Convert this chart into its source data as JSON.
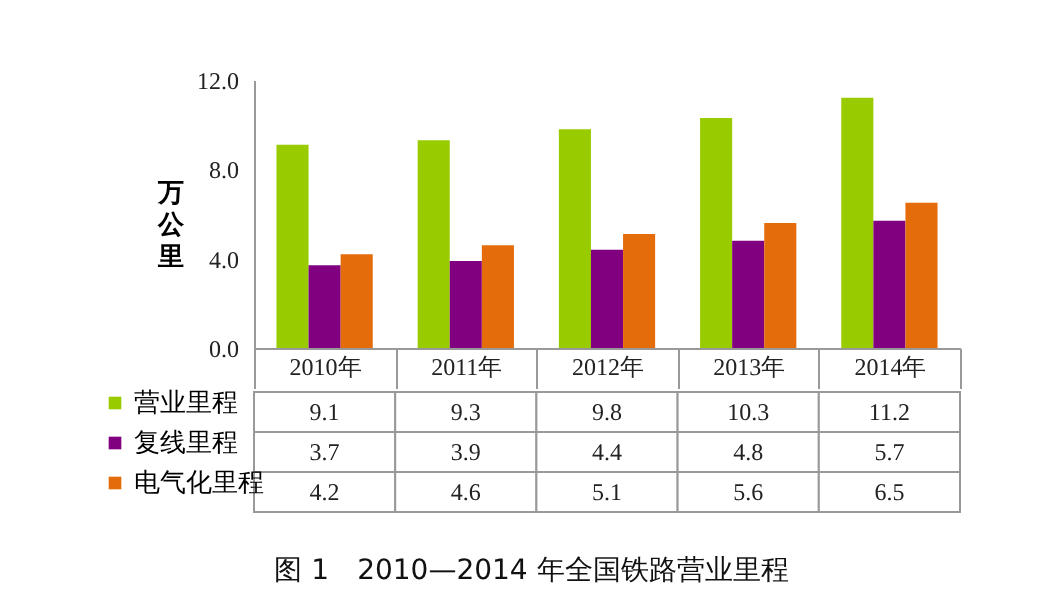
{
  "chart_data": {
    "type": "bar",
    "title": "图 1　2010—2014 年全国铁路营业里程",
    "ylabel": "万公里",
    "categories": [
      "2010年",
      "2011年",
      "2012年",
      "2013年",
      "2014年"
    ],
    "series": [
      {
        "name": "营业里程",
        "color": "#99cc00",
        "values": [
          9.1,
          9.3,
          9.8,
          10.3,
          11.2
        ]
      },
      {
        "name": "复线里程",
        "color": "#800080",
        "values": [
          3.7,
          3.9,
          4.4,
          4.8,
          5.7
        ]
      },
      {
        "name": "电气化里程",
        "color": "#e46c0a",
        "values": [
          4.2,
          4.6,
          5.1,
          5.6,
          6.5
        ]
      }
    ],
    "ylim": [
      0,
      12
    ],
    "yticks": [
      {
        "value": 0,
        "label": "0.0"
      },
      {
        "value": 4,
        "label": "4.0"
      },
      {
        "value": 8,
        "label": "8.0"
      },
      {
        "value": 12,
        "label": "12.0"
      }
    ],
    "grid": false,
    "legend": "bottom left",
    "data_labels": true
  }
}
